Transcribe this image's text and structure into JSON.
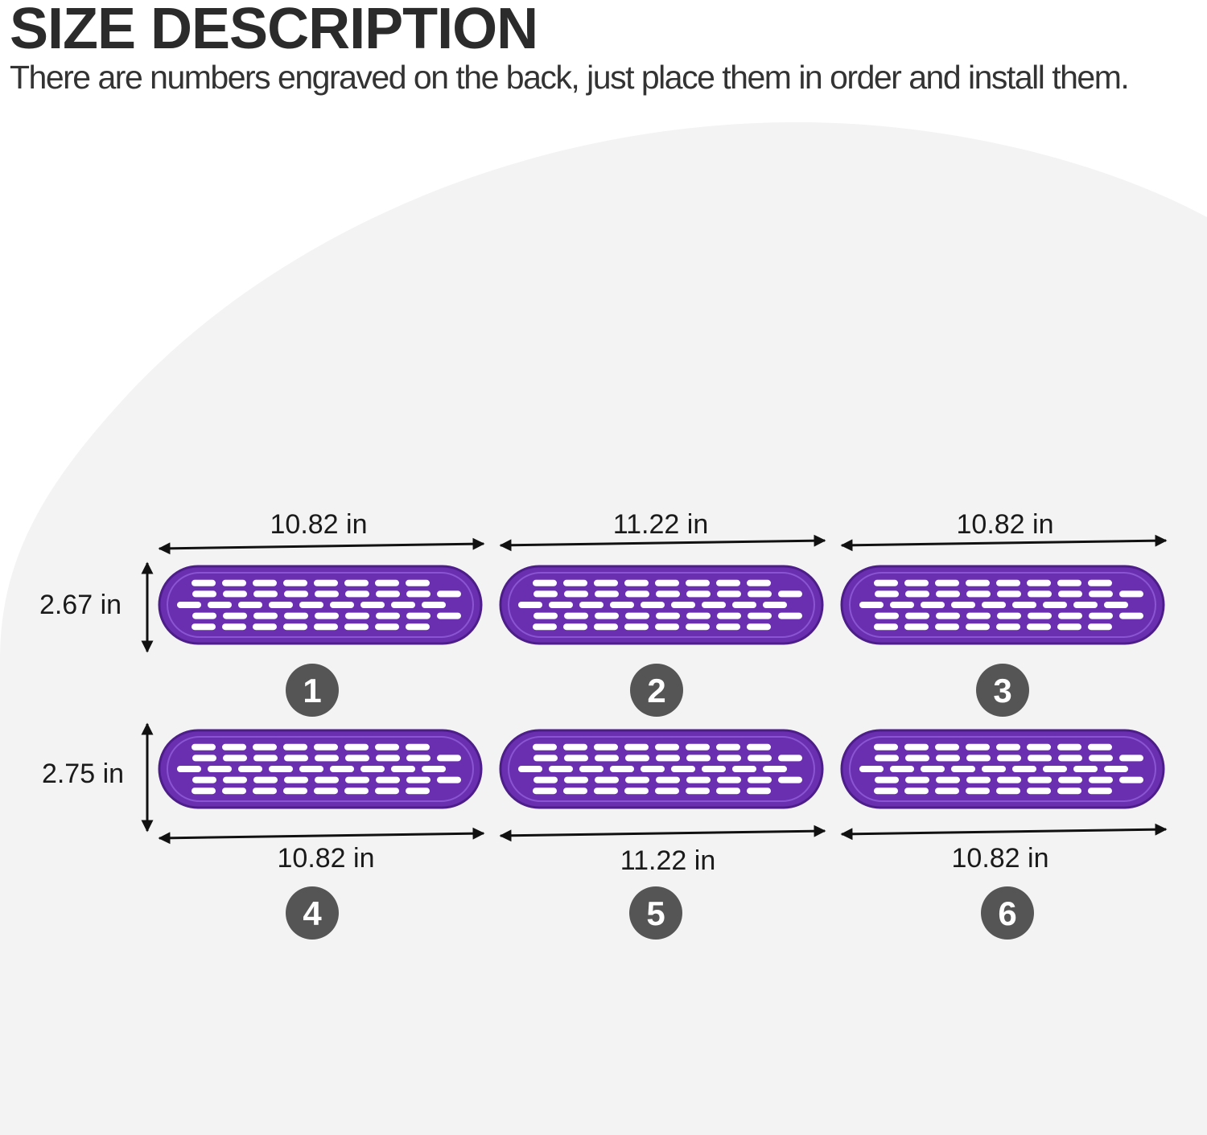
{
  "header": {
    "title": "SIZE DESCRIPTION",
    "subtitle": "There are numbers engraved on the back, just place them in order and install them."
  },
  "colors": {
    "grille": "#6a2fb0",
    "grille_dark": "#4d1e8a",
    "badge": "#555555",
    "arrow": "#111111",
    "background_blob": "#f3f3f3"
  },
  "heights": {
    "top_row": "2.67 in",
    "bottom_row": "2.75 in"
  },
  "pieces": [
    {
      "number": "1",
      "width": "10.82 in"
    },
    {
      "number": "2",
      "width": "11.22 in"
    },
    {
      "number": "3",
      "width": "10.82 in"
    },
    {
      "number": "4",
      "width": "10.82 in"
    },
    {
      "number": "5",
      "width": "11.22 in"
    },
    {
      "number": "6",
      "width": "10.82 in"
    }
  ]
}
